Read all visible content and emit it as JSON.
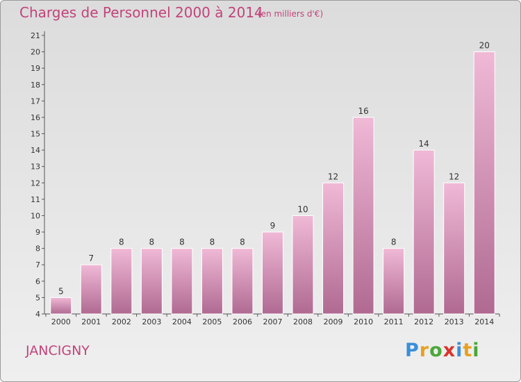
{
  "header": {
    "title": "Charges de Personnel 2000 à 2014",
    "unit": "(en milliers d'€)"
  },
  "footer": {
    "commune": "JANCIGNY",
    "logo_letters": [
      "P",
      "r",
      "o",
      "x",
      "i",
      "t",
      "i"
    ],
    "logo_colors": [
      "#3a8fd8",
      "#e8a020",
      "#4aa83a",
      "#d8342c",
      "#3a8fd8",
      "#e8a020",
      "#4aa83a"
    ]
  },
  "colors": {
    "bar_light": "#f0b9d6",
    "bar_dark": "#b06a92",
    "accent": "#c2437a"
  },
  "chart_data": {
    "type": "bar",
    "categories": [
      "2000",
      "2001",
      "2002",
      "2003",
      "2004",
      "2005",
      "2006",
      "2007",
      "2008",
      "2009",
      "2010",
      "2011",
      "2012",
      "2013",
      "2014"
    ],
    "values": [
      5,
      7,
      8,
      8,
      8,
      8,
      8,
      9,
      10,
      12,
      16,
      8,
      14,
      12,
      20
    ],
    "ylim": [
      4,
      21
    ],
    "yticks": [
      4,
      5,
      6,
      7,
      8,
      9,
      10,
      11,
      12,
      13,
      14,
      15,
      16,
      17,
      18,
      19,
      20,
      21
    ],
    "grid": false
  }
}
